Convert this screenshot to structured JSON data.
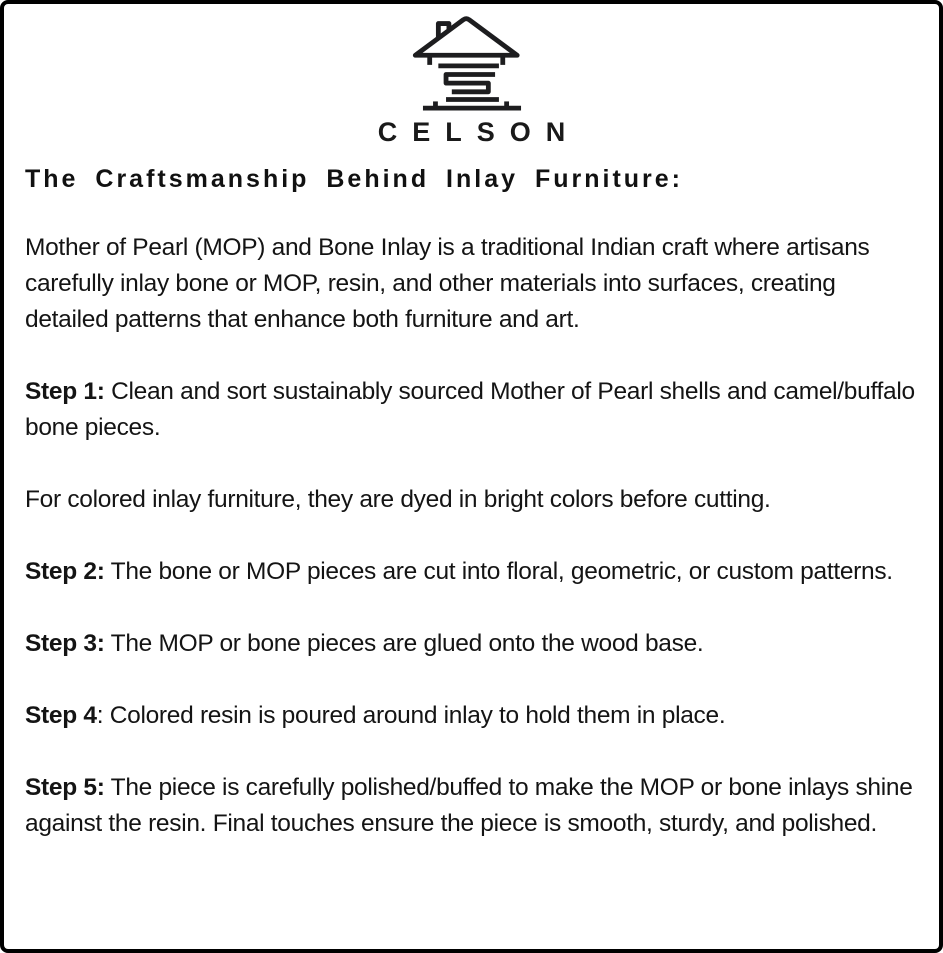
{
  "brand": {
    "logo_icon": "celson-house-s-monogram-icon",
    "name": "CELSON"
  },
  "heading": "The Craftsmanship Behind Inlay Furniture:",
  "main": {
    "paragraphs": [
      {
        "segments": [
          {
            "bold": false,
            "text": "Mother of Pearl (MOP) and Bone Inlay is a traditional Indian craft where artisans carefully inlay bone or MOP, resin, and other materials into surfaces, creating detailed patterns that enhance both furniture and art."
          }
        ]
      },
      {
        "segments": [
          {
            "bold": true,
            "text": "Step 1:"
          },
          {
            "bold": false,
            "text": " Clean and sort sustainably sourced Mother of Pearl shells and camel/buffalo bone pieces."
          }
        ]
      },
      {
        "segments": [
          {
            "bold": false,
            "text": "For colored inlay furniture, they are dyed in bright colors before cutting."
          }
        ]
      },
      {
        "segments": [
          {
            "bold": true,
            "text": "Step 2:"
          },
          {
            "bold": false,
            "text": " The bone or MOP pieces are cut into floral, geometric, or custom patterns."
          }
        ]
      },
      {
        "segments": [
          {
            "bold": true,
            "text": "Step 3:"
          },
          {
            "bold": false,
            "text": " The MOP or bone pieces are glued onto the wood base."
          }
        ]
      },
      {
        "segments": [
          {
            "bold": true,
            "text": "Step 4"
          },
          {
            "bold": false,
            "text": ": Colored resin is poured around inlay to hold them in place."
          }
        ]
      },
      {
        "segments": [
          {
            "bold": true,
            "text": "Step 5:"
          },
          {
            "bold": false,
            "text": " The piece is carefully polished/buffed to make the MOP or bone inlays shine against the resin. Final touches ensure the piece is smooth, sturdy, and polished."
          }
        ]
      }
    ]
  },
  "colors": {
    "text": "#141414",
    "border": "#000000",
    "background": "#ffffff"
  }
}
